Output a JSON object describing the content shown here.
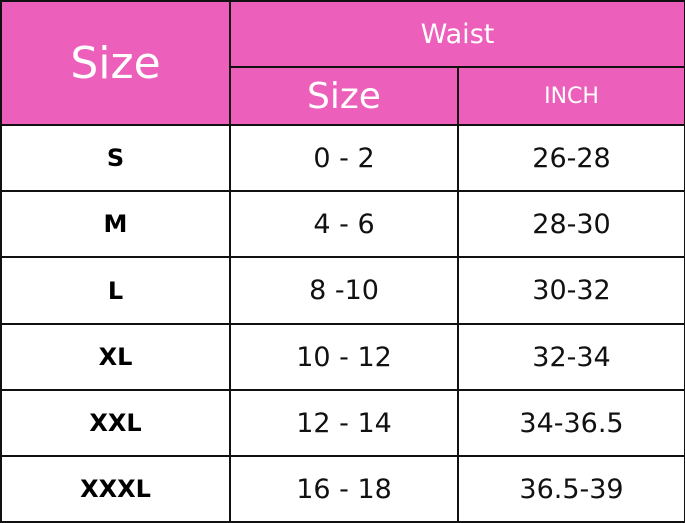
{
  "header": {
    "size": "Size",
    "waist": "Waist",
    "sub_size": "Size",
    "inch": "INCH",
    "color": "#ec5fba"
  },
  "rows": [
    {
      "size": "S",
      "us": "0 - 2",
      "inch": "26-28"
    },
    {
      "size": "M",
      "us": "4 - 6",
      "inch": "28-30"
    },
    {
      "size": "L",
      "us": "8 -10",
      "inch": "30-32"
    },
    {
      "size": "XL",
      "us": "10 - 12",
      "inch": "32-34"
    },
    {
      "size": "XXL",
      "us": "12 - 14",
      "inch": "34-36.5"
    },
    {
      "size": "XXXL",
      "us": "16 - 18",
      "inch": "36.5-39"
    }
  ]
}
